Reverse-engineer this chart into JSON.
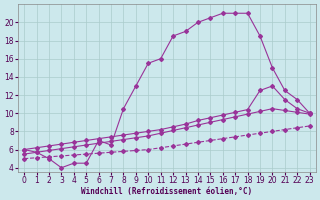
{
  "xlabel": "Windchill (Refroidissement éolien,°C)",
  "bg_color": "#cce8ec",
  "line_color": "#993399",
  "grid_color": "#aacccc",
  "x_ticks": [
    0,
    1,
    2,
    3,
    4,
    5,
    6,
    7,
    8,
    9,
    10,
    11,
    12,
    13,
    14,
    15,
    16,
    17,
    18,
    19,
    20,
    21,
    22,
    23
  ],
  "y_ticks": [
    4,
    6,
    8,
    10,
    12,
    14,
    16,
    18,
    20
  ],
  "line1_x": [
    0,
    1,
    2,
    3,
    4,
    5,
    6,
    7,
    8,
    9,
    10,
    11,
    12,
    13,
    14,
    15,
    16,
    17,
    18,
    19,
    20,
    21,
    22,
    23
  ],
  "line1_y": [
    6,
    5.7,
    5,
    4,
    4.5,
    4.5,
    7,
    6.5,
    10.5,
    13,
    15.5,
    16,
    18.5,
    19,
    20,
    20.5,
    21,
    21,
    21,
    18.5,
    15,
    12.5,
    11.5,
    10
  ],
  "line2_x": [
    0,
    1,
    2,
    3,
    4,
    5,
    6,
    7,
    8,
    9,
    10,
    11,
    12,
    13,
    14,
    15,
    16,
    17,
    18,
    19,
    20,
    21,
    22,
    23
  ],
  "line2_y": [
    6,
    6.2,
    6.4,
    6.6,
    6.8,
    7.0,
    7.2,
    7.4,
    7.6,
    7.8,
    8.0,
    8.2,
    8.5,
    8.8,
    9.2,
    9.5,
    9.8,
    10.1,
    10.4,
    12.5,
    13.0,
    11.5,
    10.5,
    10.0
  ],
  "line3_x": [
    0,
    1,
    2,
    3,
    4,
    5,
    6,
    7,
    8,
    9,
    10,
    11,
    12,
    13,
    14,
    15,
    16,
    17,
    18,
    19,
    20,
    21,
    22,
    23
  ],
  "line3_y": [
    5.5,
    5.7,
    5.9,
    6.1,
    6.3,
    6.5,
    6.7,
    6.9,
    7.1,
    7.3,
    7.5,
    7.8,
    8.1,
    8.4,
    8.7,
    9.0,
    9.3,
    9.6,
    9.9,
    10.2,
    10.5,
    10.3,
    10.1,
    9.9
  ],
  "line4_x": [
    0,
    1,
    2,
    3,
    4,
    5,
    6,
    7,
    8,
    9,
    10,
    11,
    12,
    13,
    14,
    15,
    16,
    17,
    18,
    19,
    20,
    21,
    22,
    23
  ],
  "line4_y": [
    5.0,
    5.1,
    5.2,
    5.3,
    5.4,
    5.5,
    5.6,
    5.7,
    5.8,
    5.9,
    6.0,
    6.2,
    6.4,
    6.6,
    6.8,
    7.0,
    7.2,
    7.4,
    7.6,
    7.8,
    8.0,
    8.2,
    8.4,
    8.6
  ],
  "xlim": [
    -0.5,
    23.5
  ],
  "ylim": [
    3.5,
    22.0
  ],
  "tick_fontsize": 5.5,
  "label_fontsize": 5.5
}
